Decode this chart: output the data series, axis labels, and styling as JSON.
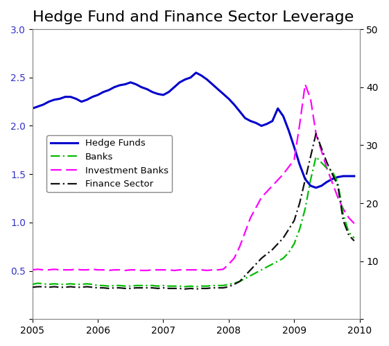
{
  "title": "Hedge Fund and Finance Sector Leverage",
  "title_fontsize": 16,
  "xlim": [
    2005.0,
    2010.0
  ],
  "ylim_left": [
    0,
    3
  ],
  "ylim_right": [
    0,
    50
  ],
  "yticks_left": [
    0,
    0.5,
    1.0,
    1.5,
    2.0,
    2.5,
    3.0
  ],
  "yticks_right": [
    0,
    10,
    20,
    30,
    40,
    50
  ],
  "xticks": [
    2005,
    2006,
    2007,
    2008,
    2009,
    2010
  ],
  "background_color": "#ffffff",
  "hedge_funds": {
    "label": "Hedge Funds",
    "color": "#0000cc",
    "linewidth": 2.2,
    "x": [
      2005.0,
      2005.083,
      2005.167,
      2005.25,
      2005.333,
      2005.417,
      2005.5,
      2005.583,
      2005.667,
      2005.75,
      2005.833,
      2005.917,
      2006.0,
      2006.083,
      2006.167,
      2006.25,
      2006.333,
      2006.417,
      2006.5,
      2006.583,
      2006.667,
      2006.75,
      2006.833,
      2006.917,
      2007.0,
      2007.083,
      2007.167,
      2007.25,
      2007.333,
      2007.417,
      2007.5,
      2007.583,
      2007.667,
      2007.75,
      2007.833,
      2007.917,
      2008.0,
      2008.083,
      2008.167,
      2008.25,
      2008.333,
      2008.417,
      2008.5,
      2008.583,
      2008.667,
      2008.75,
      2008.833,
      2008.917,
      2009.0,
      2009.083,
      2009.167,
      2009.25,
      2009.333,
      2009.417,
      2009.5,
      2009.583,
      2009.667,
      2009.75,
      2009.833,
      2009.917
    ],
    "y": [
      2.18,
      2.2,
      2.22,
      2.25,
      2.27,
      2.28,
      2.3,
      2.3,
      2.28,
      2.25,
      2.27,
      2.3,
      2.32,
      2.35,
      2.37,
      2.4,
      2.42,
      2.43,
      2.45,
      2.43,
      2.4,
      2.38,
      2.35,
      2.33,
      2.32,
      2.35,
      2.4,
      2.45,
      2.48,
      2.5,
      2.55,
      2.52,
      2.48,
      2.43,
      2.38,
      2.33,
      2.28,
      2.22,
      2.15,
      2.08,
      2.05,
      2.03,
      2.0,
      2.02,
      2.05,
      2.18,
      2.1,
      1.95,
      1.78,
      1.6,
      1.45,
      1.38,
      1.36,
      1.38,
      1.42,
      1.45,
      1.47,
      1.48,
      1.48,
      1.48
    ]
  },
  "banks": {
    "label": "Banks",
    "color": "#00bb00",
    "linewidth": 1.6,
    "x": [
      2005.0,
      2005.083,
      2005.167,
      2005.25,
      2005.333,
      2005.417,
      2005.5,
      2005.583,
      2005.667,
      2005.75,
      2005.833,
      2005.917,
      2006.0,
      2006.083,
      2006.167,
      2006.25,
      2006.333,
      2006.417,
      2006.5,
      2006.583,
      2006.667,
      2006.75,
      2006.833,
      2006.917,
      2007.0,
      2007.083,
      2007.167,
      2007.25,
      2007.333,
      2007.417,
      2007.5,
      2007.583,
      2007.667,
      2007.75,
      2007.833,
      2007.917,
      2008.0,
      2008.083,
      2008.167,
      2008.25,
      2008.333,
      2008.5,
      2008.667,
      2008.75,
      2008.833,
      2008.917,
      2009.0,
      2009.083,
      2009.167,
      2009.25,
      2009.333,
      2009.5,
      2009.583,
      2009.667,
      2009.75,
      2009.833,
      2009.917
    ],
    "y": [
      6.0,
      6.2,
      6.1,
      6.0,
      6.1,
      6.0,
      6.0,
      6.1,
      6.0,
      6.0,
      6.1,
      6.0,
      5.8,
      5.8,
      5.7,
      5.8,
      5.8,
      5.7,
      5.7,
      5.8,
      5.8,
      5.8,
      5.8,
      5.7,
      5.8,
      5.7,
      5.7,
      5.7,
      5.6,
      5.7,
      5.6,
      5.7,
      5.7,
      5.8,
      5.8,
      5.8,
      6.0,
      6.2,
      6.5,
      7.0,
      7.5,
      8.5,
      9.5,
      10.0,
      10.5,
      11.5,
      13.0,
      15.5,
      19.0,
      24.0,
      28.0,
      26.0,
      25.5,
      23.5,
      18.0,
      15.0,
      14.0
    ]
  },
  "investment_banks": {
    "label": "Investment Banks",
    "color": "#ff00ff",
    "linewidth": 1.6,
    "x": [
      2005.0,
      2005.083,
      2005.167,
      2005.25,
      2005.333,
      2005.417,
      2005.5,
      2005.583,
      2005.667,
      2005.75,
      2005.833,
      2005.917,
      2006.0,
      2006.083,
      2006.167,
      2006.25,
      2006.333,
      2006.417,
      2006.5,
      2006.583,
      2006.667,
      2006.75,
      2006.833,
      2006.917,
      2007.0,
      2007.083,
      2007.167,
      2007.25,
      2007.333,
      2007.417,
      2007.5,
      2007.583,
      2007.667,
      2007.75,
      2007.833,
      2007.917,
      2008.0,
      2008.083,
      2008.167,
      2008.25,
      2008.333,
      2008.5,
      2008.667,
      2008.833,
      2009.0,
      2009.083,
      2009.167,
      2009.25,
      2009.333,
      2009.5,
      2009.583,
      2009.667,
      2009.75,
      2009.833,
      2009.917
    ],
    "y": [
      8.5,
      8.6,
      8.5,
      8.5,
      8.6,
      8.5,
      8.5,
      8.5,
      8.6,
      8.5,
      8.5,
      8.6,
      8.5,
      8.5,
      8.4,
      8.5,
      8.5,
      8.4,
      8.5,
      8.5,
      8.4,
      8.4,
      8.5,
      8.5,
      8.5,
      8.5,
      8.4,
      8.5,
      8.5,
      8.5,
      8.5,
      8.5,
      8.4,
      8.5,
      8.5,
      8.6,
      9.5,
      10.5,
      12.5,
      15.0,
      17.5,
      21.0,
      23.0,
      25.0,
      27.5,
      33.5,
      40.5,
      38.0,
      32.0,
      26.0,
      23.5,
      21.0,
      19.0,
      17.5,
      16.5
    ]
  },
  "finance_sector": {
    "label": "Finance Sector",
    "color": "#111111",
    "linewidth": 1.6,
    "x": [
      2005.0,
      2005.083,
      2005.167,
      2005.25,
      2005.333,
      2005.417,
      2005.5,
      2005.583,
      2005.667,
      2005.75,
      2005.833,
      2005.917,
      2006.0,
      2006.083,
      2006.167,
      2006.25,
      2006.333,
      2006.417,
      2006.5,
      2006.583,
      2006.667,
      2006.75,
      2006.833,
      2006.917,
      2007.0,
      2007.083,
      2007.167,
      2007.25,
      2007.333,
      2007.417,
      2007.5,
      2007.583,
      2007.667,
      2007.75,
      2007.833,
      2007.917,
      2008.0,
      2008.083,
      2008.167,
      2008.25,
      2008.333,
      2008.5,
      2008.667,
      2008.75,
      2008.833,
      2008.917,
      2009.0,
      2009.083,
      2009.167,
      2009.25,
      2009.333,
      2009.5,
      2009.583,
      2009.667,
      2009.75,
      2009.833,
      2009.917
    ],
    "y": [
      5.5,
      5.6,
      5.6,
      5.5,
      5.6,
      5.5,
      5.5,
      5.6,
      5.5,
      5.5,
      5.6,
      5.5,
      5.4,
      5.4,
      5.3,
      5.4,
      5.4,
      5.3,
      5.3,
      5.4,
      5.4,
      5.4,
      5.4,
      5.3,
      5.4,
      5.3,
      5.3,
      5.3,
      5.2,
      5.3,
      5.2,
      5.3,
      5.3,
      5.4,
      5.4,
      5.4,
      5.6,
      6.0,
      6.5,
      7.5,
      8.5,
      10.5,
      12.0,
      13.0,
      14.0,
      15.5,
      17.0,
      20.0,
      24.0,
      28.0,
      32.0,
      27.0,
      25.0,
      23.0,
      17.0,
      14.5,
      13.5
    ]
  }
}
